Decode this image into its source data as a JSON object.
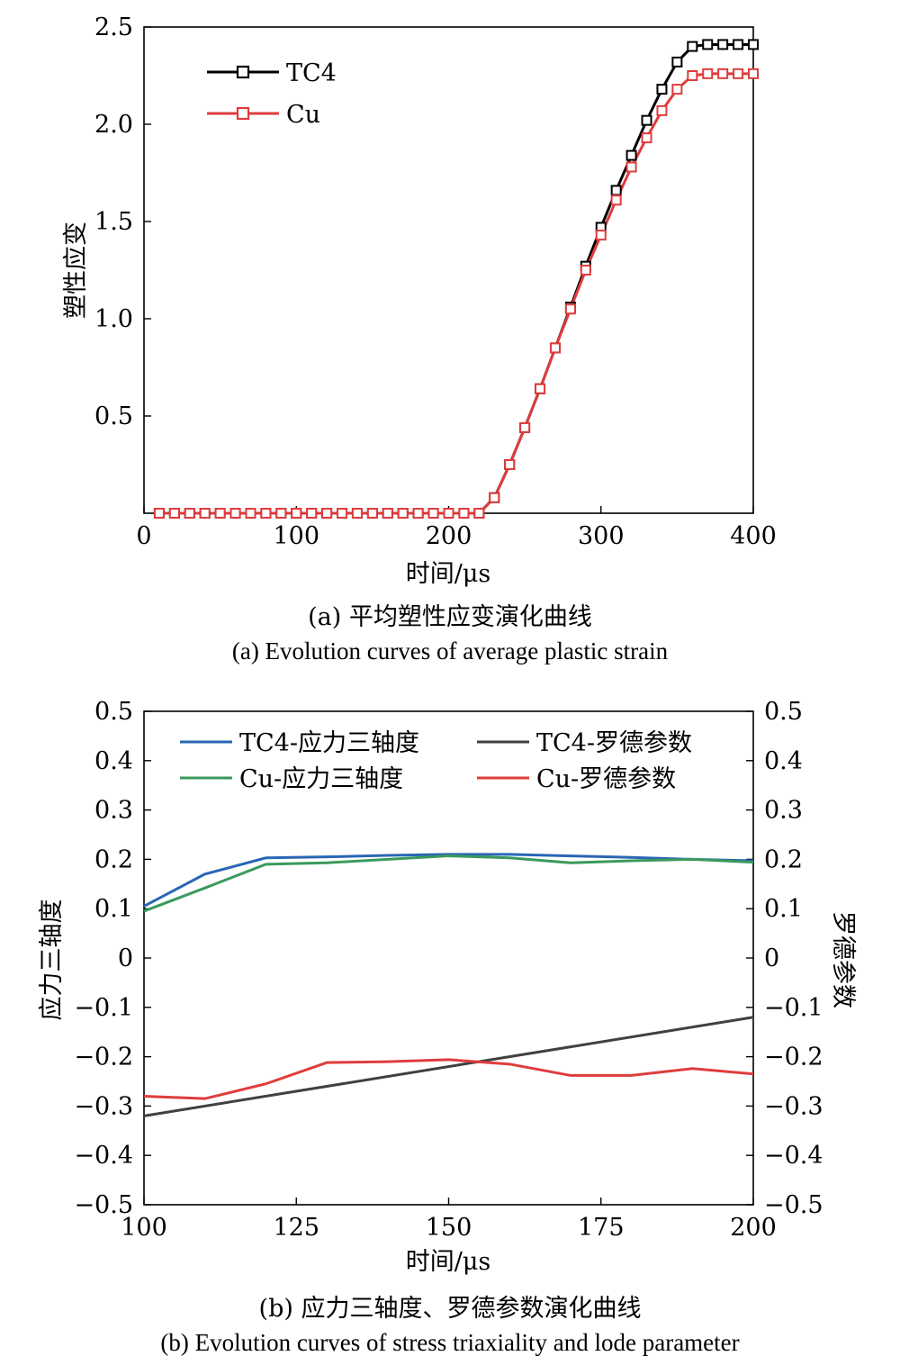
{
  "chart_data": [
    {
      "type": "line",
      "ylabel": "塑性应变",
      "xlabel": "时间/μs",
      "xlim": [
        0,
        400
      ],
      "ylim": [
        0,
        2.5
      ],
      "xticks": [
        "0",
        "100",
        "200",
        "300",
        "400"
      ],
      "yticks": [
        "0.5",
        "1.0",
        "1.5",
        "2.0",
        "2.5"
      ],
      "legend_position": "top-left",
      "caption_cn": "(a) 平均塑性应变演化曲线",
      "caption_en": "(a) Evolution curves of average plastic strain",
      "x": [
        10,
        20,
        30,
        40,
        50,
        60,
        70,
        80,
        90,
        100,
        110,
        120,
        130,
        140,
        150,
        160,
        170,
        180,
        190,
        200,
        210,
        220,
        230,
        240,
        250,
        260,
        270,
        280,
        290,
        300,
        310,
        320,
        330,
        340,
        350,
        360,
        370,
        380,
        390,
        400
      ],
      "series": [
        {
          "name": "TC4",
          "color": "#000000",
          "marker": "square",
          "values": [
            0,
            0,
            0,
            0,
            0,
            0,
            0,
            0,
            0,
            0,
            0,
            0,
            0,
            0,
            0,
            0,
            0,
            0,
            0,
            0,
            0,
            0,
            0.08,
            0.25,
            0.44,
            0.64,
            0.85,
            1.06,
            1.27,
            1.47,
            1.66,
            1.84,
            2.02,
            2.18,
            2.32,
            2.4,
            2.41,
            2.41,
            2.41,
            2.41
          ]
        },
        {
          "name": "Cu",
          "color": "#e03c3c",
          "marker": "square",
          "values": [
            0,
            0,
            0,
            0,
            0,
            0,
            0,
            0,
            0,
            0,
            0,
            0,
            0,
            0,
            0,
            0,
            0,
            0,
            0,
            0,
            0,
            0,
            0.08,
            0.25,
            0.44,
            0.64,
            0.85,
            1.05,
            1.25,
            1.43,
            1.61,
            1.78,
            1.93,
            2.07,
            2.18,
            2.25,
            2.26,
            2.26,
            2.26,
            2.26
          ]
        }
      ]
    },
    {
      "type": "line",
      "ylabel": "应力三轴度",
      "y2label": "罗德参数",
      "xlabel": "时间/μs",
      "xlim": [
        100,
        200
      ],
      "ylim": [
        -0.5,
        0.5
      ],
      "y2lim": [
        -0.5,
        0.5
      ],
      "xticks": [
        "100",
        "125",
        "150",
        "175",
        "200"
      ],
      "yticks": [
        "−0.5",
        "−0.4",
        "−0.3",
        "−0.2",
        "−0.1",
        "0",
        "0.1",
        "0.2",
        "0.3",
        "0.4",
        "0.5"
      ],
      "legend_position": "top",
      "caption_cn": "(b) 应力三轴度、罗德参数演化曲线",
      "caption_en": "(b) Evolution curves of stress triaxiality and lode parameter",
      "series": [
        {
          "name": "TC4-应力三轴度",
          "color": "#2a66b5",
          "axis": "left",
          "x": [
            100,
            110,
            120,
            130,
            140,
            150,
            160,
            170,
            180,
            190,
            200
          ],
          "values": [
            0.105,
            0.17,
            0.203,
            0.205,
            0.208,
            0.21,
            0.21,
            0.207,
            0.204,
            0.2,
            0.197
          ]
        },
        {
          "name": "Cu-应力三轴度",
          "color": "#3a9a5c",
          "axis": "left",
          "x": [
            100,
            110,
            120,
            130,
            140,
            150,
            160,
            170,
            180,
            190,
            200
          ],
          "values": [
            0.095,
            0.142,
            0.19,
            0.193,
            0.2,
            0.207,
            0.203,
            0.193,
            0.197,
            0.2,
            0.194
          ]
        },
        {
          "name": "TC4-罗德参数",
          "color": "#404040",
          "axis": "right",
          "x": [
            100,
            200
          ],
          "values": [
            -0.32,
            -0.12
          ]
        },
        {
          "name": "Cu-罗德参数",
          "color": "#e03c3c",
          "axis": "right",
          "x": [
            100,
            110,
            120,
            130,
            140,
            150,
            160,
            170,
            180,
            190,
            200
          ],
          "values": [
            -0.28,
            -0.285,
            -0.255,
            -0.212,
            -0.21,
            -0.206,
            -0.215,
            -0.238,
            -0.238,
            -0.224,
            -0.235
          ]
        }
      ]
    }
  ]
}
